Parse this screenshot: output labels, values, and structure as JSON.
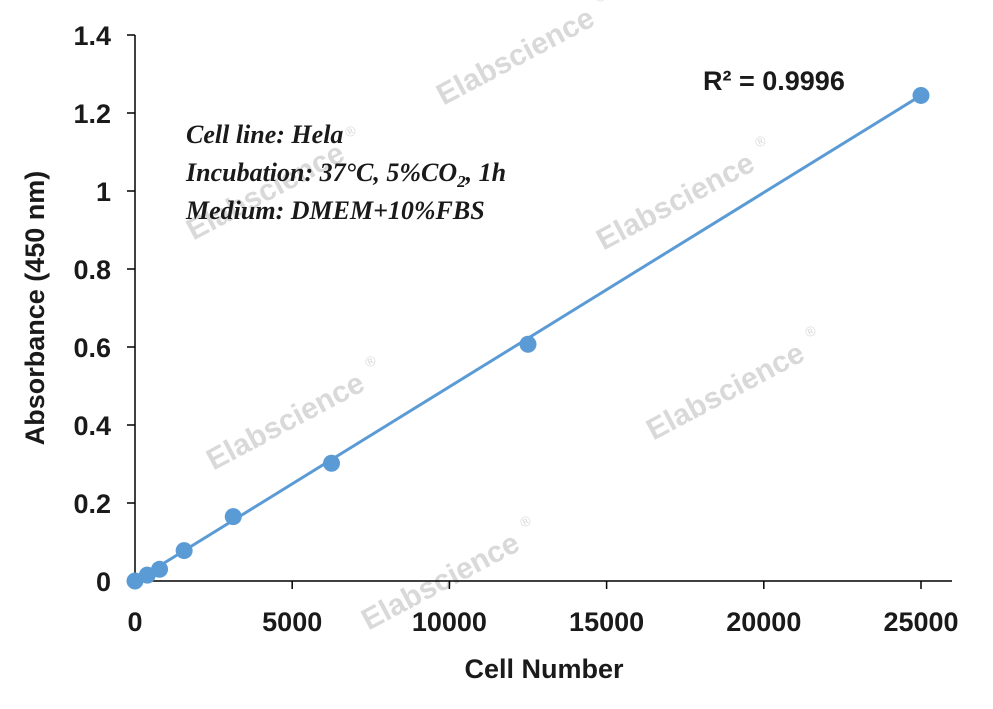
{
  "chart_data": {
    "type": "scatter",
    "xlabel": "Cell Number",
    "ylabel": "Absorbance (450 nm)",
    "xlim": [
      0,
      25000
    ],
    "ylim": [
      0,
      1.4
    ],
    "x_ticks": [
      "0",
      "5000",
      "10000",
      "15000",
      "20000",
      "25000"
    ],
    "y_ticks": [
      "0",
      "0.2",
      "0.4",
      "0.6",
      "0.8",
      "1",
      "1.2",
      "1.4"
    ],
    "grid": false,
    "color": "#5b9bd5",
    "series": [
      {
        "points": [
          {
            "x": 0,
            "y": 0.0
          },
          {
            "x": 390,
            "y": 0.015
          },
          {
            "x": 781,
            "y": 0.03
          },
          {
            "x": 1563,
            "y": 0.078
          },
          {
            "x": 3125,
            "y": 0.165
          },
          {
            "x": 6250,
            "y": 0.302
          },
          {
            "x": 12500,
            "y": 0.607
          },
          {
            "x": 25000,
            "y": 1.245
          }
        ]
      }
    ],
    "trendline": {
      "type": "linear",
      "from": {
        "x": 0,
        "y": 0.0
      },
      "to": {
        "x": 25000,
        "y": 1.245
      }
    },
    "r_squared_label": "R² = 0.9996",
    "annotations": {
      "line1": "Cell line: Hela",
      "line2_prefix": "Incubation: 37°C, 5%CO",
      "line2_sub": "2",
      "line2_suffix": ", 1h",
      "line3": "Medium: DMEM+10%FBS"
    },
    "watermark": {
      "text": "Elabscience",
      "mark": "®"
    }
  }
}
